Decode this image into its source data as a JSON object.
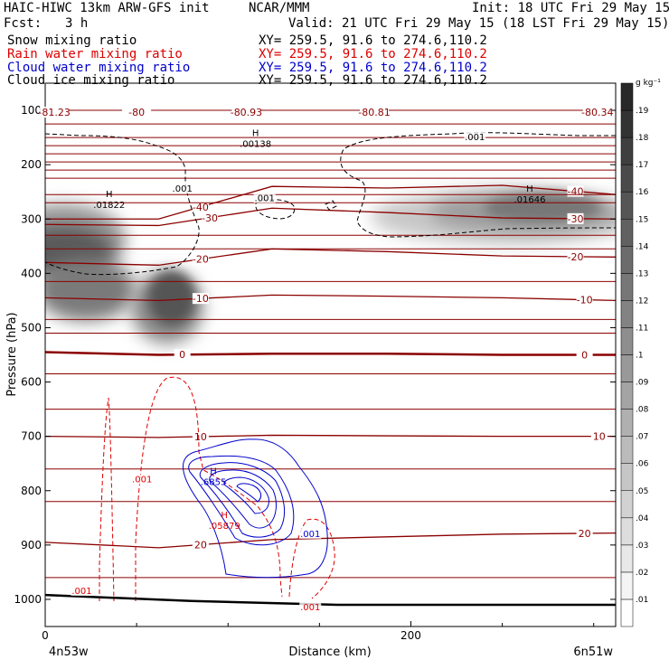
{
  "header": {
    "model": "HAIC-HIWC 13km ARW-GFS init",
    "org": "NCAR/MMM",
    "init": "Init: 18 UTC Fri 29 May 15",
    "fcst_label": "Fcst:",
    "fcst_value": "3 h",
    "valid": "Valid: 21 UTC Fri 29 May 15 (18 LST Fri 29 May 15)"
  },
  "fields": [
    {
      "name": "Snow mixing ratio",
      "xy": "XY= 259.5, 91.6 to 274.6,110.2",
      "color": "#000000"
    },
    {
      "name": "Rain water mixing ratio",
      "xy": "XY= 259.5, 91.6 to 274.6,110.2",
      "color": "#dd0000"
    },
    {
      "name": "Cloud water mixing ratio",
      "xy": "XY= 259.5, 91.6 to 274.6,110.2",
      "color": "#0000cc"
    },
    {
      "name": "Cloud ice mixing ratio",
      "xy": "XY= 259.5, 91.6 to 274.6,110.2",
      "color": "#000000"
    }
  ],
  "chart_data": {
    "type": "heatmap",
    "description_type": "vertical cross-section with contour overlays",
    "xlabel": "Distance (km)",
    "ylabel": "Pressure (hPa)",
    "x_ticks": [
      "0",
      "200"
    ],
    "x_tick_values": [
      0,
      200
    ],
    "xlim": [
      0,
      312
    ],
    "y_ticks": [
      "100",
      "200",
      "300",
      "400",
      "500",
      "600",
      "700",
      "800",
      "900",
      "1000"
    ],
    "y_tick_values": [
      100,
      200,
      300,
      400,
      500,
      600,
      700,
      800,
      900,
      1000
    ],
    "ylim": [
      1050,
      50
    ],
    "corner_left": "4n53w",
    "corner_right": "6n51w",
    "colorbar": {
      "unit": "g kg⁻¹",
      "levels": [
        ".01",
        ".02",
        ".03",
        ".04",
        ".05",
        ".06",
        ".07",
        ".08",
        ".09",
        ".1",
        ".11",
        ".12",
        ".13",
        ".14",
        ".15",
        ".16",
        ".17",
        ".18",
        ".19"
      ]
    },
    "temperature_contours_C": [
      {
        "value": "-40",
        "p": [
          300,
          300,
          240,
          243,
          238,
          255
        ]
      },
      {
        "value": "-30",
        "p": [
          310,
          312,
          280,
          288,
          298,
          300
        ]
      },
      {
        "value": "-20",
        "p": [
          380,
          385,
          355,
          360,
          368,
          370
        ]
      },
      {
        "value": "-10",
        "p": [
          445,
          450,
          440,
          442,
          445,
          450
        ]
      },
      {
        "value": "0",
        "p": [
          545,
          550,
          548,
          548,
          550,
          550
        ]
      },
      {
        "value": "10",
        "p": [
          700,
          702,
          698,
          699,
          700,
          700
        ]
      },
      {
        "value": "20",
        "p": [
          895,
          905,
          890,
          885,
          880,
          878
        ]
      }
    ],
    "temperature_label_x_km": [
      [
        85,
        290
      ],
      [
        90,
        290
      ],
      [
        85,
        290
      ],
      [
        85,
        295
      ],
      [
        75,
        295
      ],
      [
        85,
        303
      ],
      [
        85,
        295
      ]
    ],
    "top_labels": [
      {
        "text": "-81.23",
        "x": 5
      },
      {
        "text": "-80",
        "x": 50
      },
      {
        "text": "-80.93",
        "x": 110
      },
      {
        "text": "-80.81",
        "x": 180
      },
      {
        "text": "-80.34",
        "x": 302
      }
    ],
    "maxima_labels": [
      {
        "field": "snow",
        "text": ".01822",
        "x": 35,
        "p": 275
      },
      {
        "field": "snow",
        "text": ".01646",
        "x": 265,
        "p": 265
      },
      {
        "field": "ice",
        "text": ".00138",
        "x": 115,
        "p": 162
      },
      {
        "field": "cloud water",
        "text": ".6855",
        "x": 92,
        "p": 785
      },
      {
        "field": "rain",
        "text": ".05879",
        "x": 98,
        "p": 865
      }
    ],
    "contour_labels": [
      {
        "field": "ice",
        "text": ".001",
        "x": 235,
        "p": 150
      },
      {
        "field": "ice",
        "text": ".001",
        "x": 75,
        "p": 245
      },
      {
        "field": "ice",
        "text": ".001",
        "x": 120,
        "p": 262
      },
      {
        "field": "rain",
        "text": ".001",
        "x": 53,
        "p": 780
      },
      {
        "field": "rain",
        "text": ".001",
        "x": 20,
        "p": 985
      },
      {
        "field": "rain",
        "text": ".001",
        "x": 145,
        "p": 1015
      },
      {
        "field": "cloud water",
        "text": ".001",
        "x": 145,
        "p": 880
      }
    ],
    "terrain_p": [
      992,
      1003,
      1010,
      1010
    ],
    "terrain_x": [
      0,
      80,
      160,
      312
    ]
  }
}
